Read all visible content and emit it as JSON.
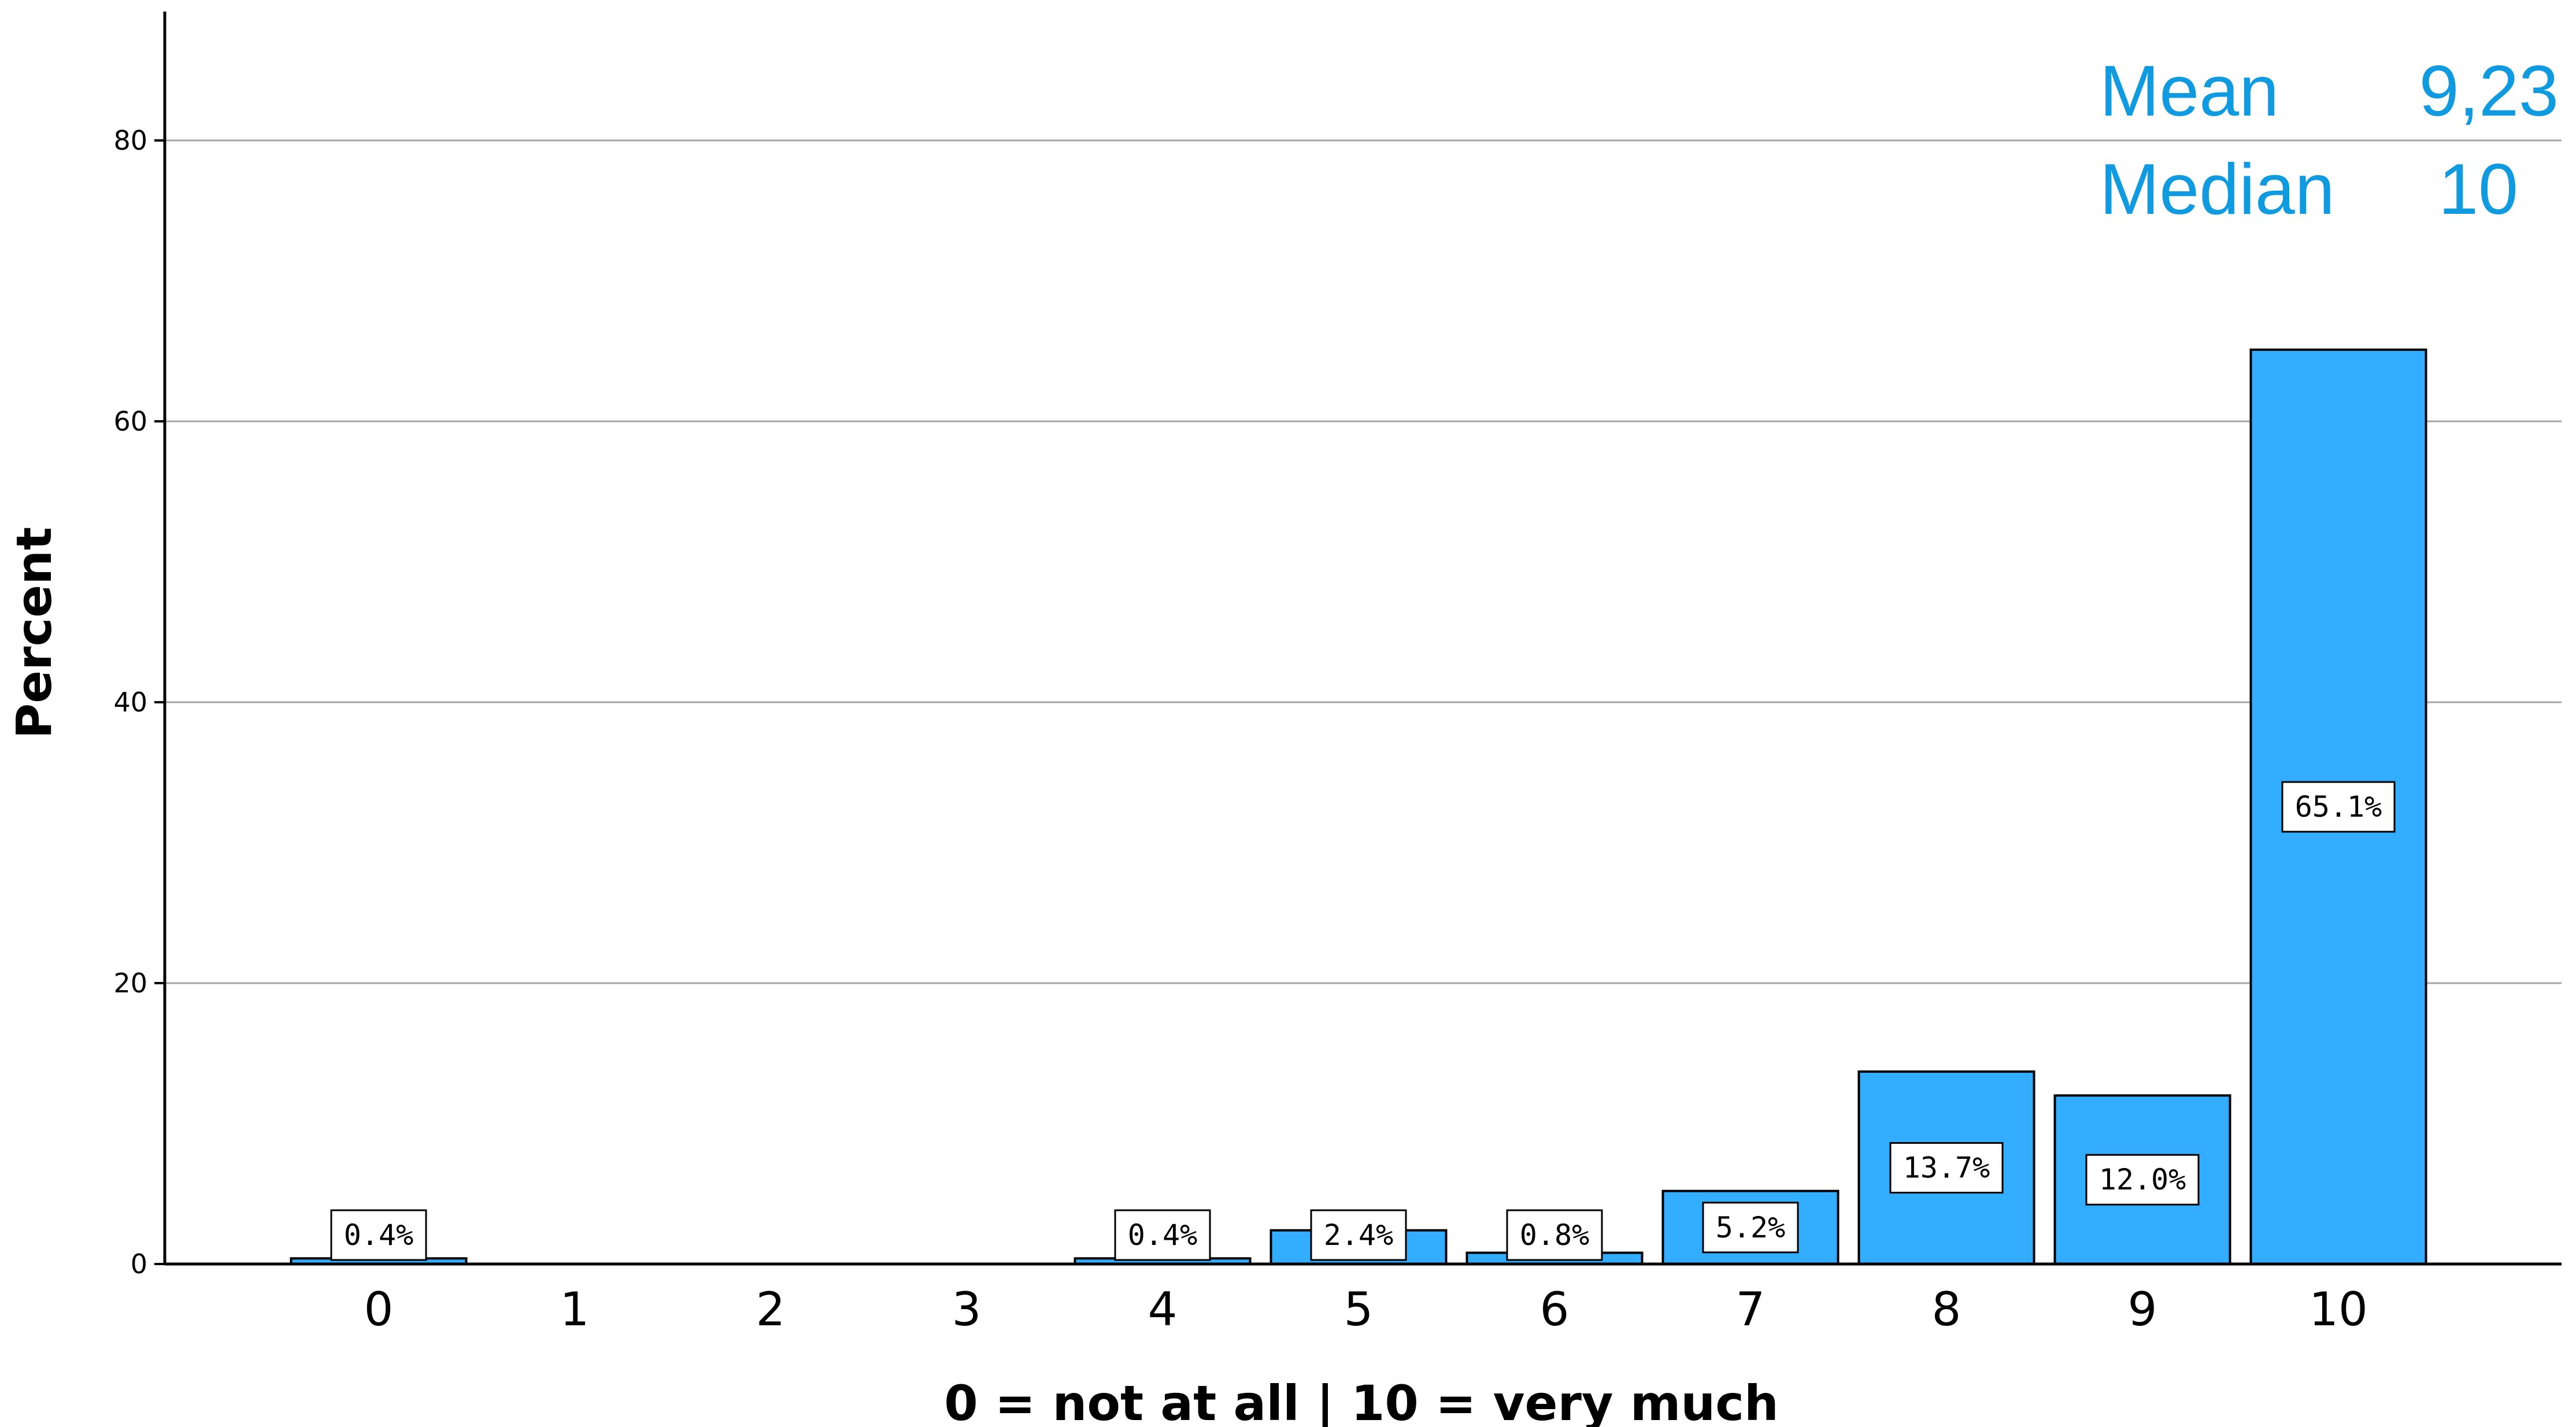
{
  "chart_data": {
    "type": "bar",
    "categories": [
      "0",
      "1",
      "2",
      "3",
      "4",
      "5",
      "6",
      "7",
      "8",
      "9",
      "10"
    ],
    "values": [
      0.4,
      0,
      0,
      0,
      0.4,
      2.4,
      0.8,
      5.2,
      13.7,
      12.0,
      65.1
    ],
    "data_labels": [
      "0.4%",
      "",
      "",
      "",
      "0.4%",
      "2.4%",
      "0.8%",
      "5.2%",
      "13.7%",
      "12.0%",
      "65.1%"
    ],
    "ylabel": "Percent",
    "xlabel": "0 = not at all | 10 = very much",
    "yticks": [
      0,
      20,
      40,
      60,
      80
    ],
    "ylim": [
      0,
      89
    ],
    "grid": true,
    "bar_color": "#33adff",
    "stats": [
      {
        "label": "Mean",
        "value": "9,23"
      },
      {
        "label": "Median",
        "value": "10"
      }
    ],
    "stats_color": "#109ae0"
  }
}
